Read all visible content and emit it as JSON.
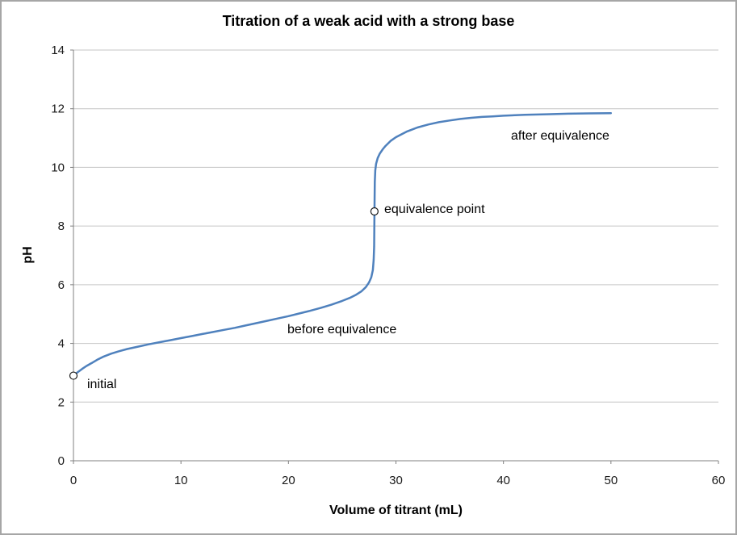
{
  "chart": {
    "title": "Titration of a weak acid with a strong base"
  },
  "chart_data": {
    "type": "line",
    "title": "Titration of a weak acid with a strong base",
    "xlabel": "Volume of titrant (mL)",
    "ylabel": "pH",
    "xlim": [
      0,
      60
    ],
    "ylim": [
      0,
      14
    ],
    "x_ticks": [
      0,
      10,
      20,
      30,
      40,
      50,
      60
    ],
    "y_ticks": [
      0,
      2,
      4,
      6,
      8,
      10,
      12,
      14
    ],
    "grid": "horizontal-only",
    "legend": "none",
    "colors": {
      "line": "#4f81bd",
      "gridline": "#c6c6c6",
      "axis": "#808080",
      "tick_text": "#1a1a1a",
      "marker_fill": "#ffffff",
      "marker_stroke": "#1a1a1a"
    },
    "series": [
      {
        "name": "titration curve",
        "points": [
          [
            0,
            2.9
          ],
          [
            0.4,
            3.02
          ],
          [
            0.8,
            3.13
          ],
          [
            1.2,
            3.23
          ],
          [
            1.7,
            3.33
          ],
          [
            2.2,
            3.44
          ],
          [
            2.8,
            3.55
          ],
          [
            3.5,
            3.65
          ],
          [
            4.2,
            3.73
          ],
          [
            5,
            3.81
          ],
          [
            6,
            3.89
          ],
          [
            7,
            3.97
          ],
          [
            8,
            4.04
          ],
          [
            9,
            4.11
          ],
          [
            10,
            4.18
          ],
          [
            11,
            4.25
          ],
          [
            12,
            4.32
          ],
          [
            13,
            4.39
          ],
          [
            14,
            4.46
          ],
          [
            15,
            4.53
          ],
          [
            16,
            4.61
          ],
          [
            17,
            4.69
          ],
          [
            18,
            4.77
          ],
          [
            19,
            4.85
          ],
          [
            20,
            4.93
          ],
          [
            21,
            5.02
          ],
          [
            22,
            5.11
          ],
          [
            23,
            5.21
          ],
          [
            24,
            5.32
          ],
          [
            25,
            5.45
          ],
          [
            25.7,
            5.55
          ],
          [
            26.3,
            5.66
          ],
          [
            26.8,
            5.78
          ],
          [
            27.2,
            5.92
          ],
          [
            27.5,
            6.08
          ],
          [
            27.7,
            6.25
          ],
          [
            27.85,
            6.5
          ],
          [
            27.93,
            6.85
          ],
          [
            27.97,
            7.3
          ],
          [
            28,
            8.5
          ],
          [
            28.03,
            9.5
          ],
          [
            28.08,
            9.9
          ],
          [
            28.15,
            10.12
          ],
          [
            28.3,
            10.32
          ],
          [
            28.5,
            10.47
          ],
          [
            28.8,
            10.63
          ],
          [
            29,
            10.72
          ],
          [
            29.5,
            10.9
          ],
          [
            30,
            11.03
          ],
          [
            31,
            11.22
          ],
          [
            32,
            11.36
          ],
          [
            33,
            11.46
          ],
          [
            34,
            11.54
          ],
          [
            35,
            11.6
          ],
          [
            36,
            11.65
          ],
          [
            37,
            11.69
          ],
          [
            38,
            11.72
          ],
          [
            39,
            11.74
          ],
          [
            40,
            11.76
          ],
          [
            42,
            11.79
          ],
          [
            44,
            11.81
          ],
          [
            46,
            11.83
          ],
          [
            48,
            11.84
          ],
          [
            50,
            11.85
          ]
        ]
      }
    ],
    "markers": [
      {
        "x": 0,
        "y": 2.9,
        "label": "initial"
      },
      {
        "x": 28,
        "y": 8.5,
        "label": "equivalence point"
      }
    ],
    "annotations": {
      "initial": "initial",
      "equivalence": "equivalence point",
      "before": "before equivalence",
      "after": "after equivalence"
    }
  }
}
